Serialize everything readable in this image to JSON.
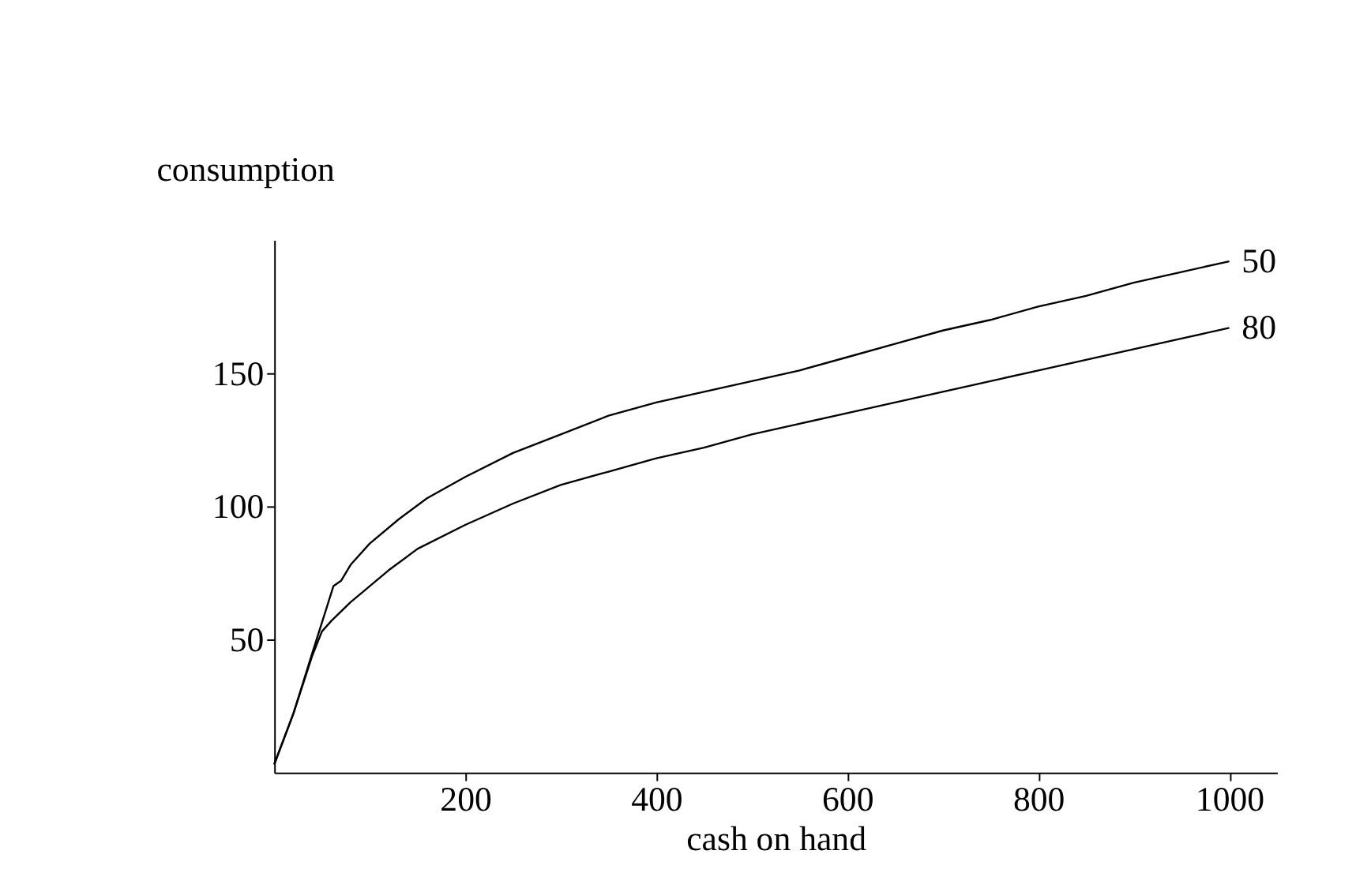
{
  "chart_data": {
    "type": "line",
    "xlabel": "cash on hand",
    "ylabel": "consumption",
    "xlim": [
      0,
      1050
    ],
    "ylim": [
      0,
      200
    ],
    "xticks": [
      200,
      400,
      600,
      800,
      1000
    ],
    "yticks": [
      50,
      100,
      150
    ],
    "grid": false,
    "legend": false,
    "marker": "none",
    "line_style": "solid",
    "series": [
      {
        "name": "50",
        "color": "#000000",
        "x": [
          0,
          20,
          40,
          55,
          62,
          70,
          80,
          100,
          130,
          160,
          200,
          250,
          300,
          350,
          400,
          450,
          500,
          550,
          600,
          650,
          700,
          750,
          800,
          850,
          900,
          950,
          1000
        ],
        "values": [
          3,
          22,
          45,
          62,
          70,
          72,
          78,
          86,
          95,
          103,
          111,
          120,
          127,
          134,
          139,
          143,
          147,
          151,
          156,
          161,
          166,
          170,
          175,
          179,
          184,
          188,
          192
        ]
      },
      {
        "name": "80",
        "color": "#000000",
        "x": [
          0,
          20,
          40,
          50,
          60,
          80,
          100,
          120,
          150,
          200,
          250,
          300,
          350,
          400,
          450,
          500,
          550,
          600,
          650,
          700,
          750,
          800,
          850,
          900,
          950,
          1000
        ],
        "values": [
          3,
          22,
          44,
          53,
          57,
          64,
          70,
          76,
          84,
          93,
          101,
          108,
          113,
          118,
          122,
          127,
          131,
          135,
          139,
          143,
          147,
          151,
          155,
          159,
          163,
          167
        ]
      }
    ]
  }
}
